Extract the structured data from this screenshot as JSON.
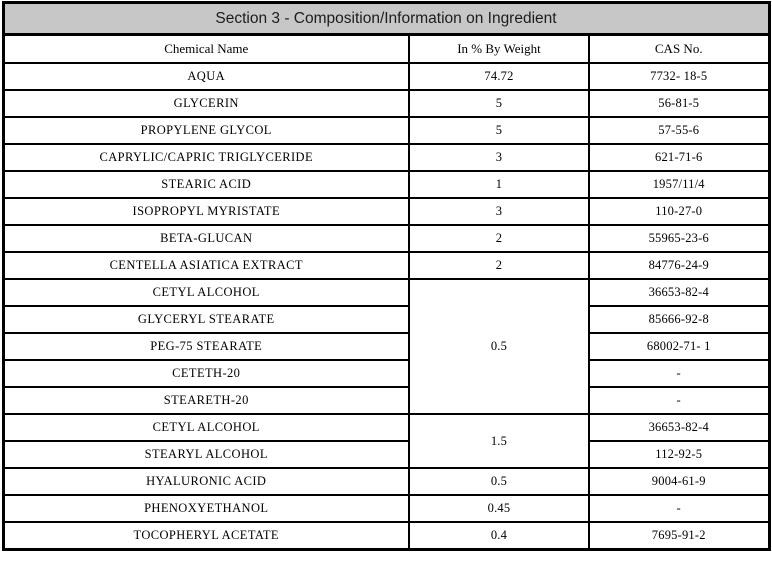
{
  "section": {
    "title": "Section 3 - Composition/Information on Ingredient"
  },
  "table": {
    "headers": [
      "Chemical Name",
      "In % By Weight",
      "CAS No."
    ],
    "rows": [
      {
        "chemical_name": "AQUA",
        "weight": "74.72",
        "weight_rowspan": 1,
        "cas": "7732- 18-5"
      },
      {
        "chemical_name": "GLYCERIN",
        "weight": "5",
        "weight_rowspan": 1,
        "cas": "56-81-5"
      },
      {
        "chemical_name": "PROPYLENE GLYCOL",
        "weight": "5",
        "weight_rowspan": 1,
        "cas": "57-55-6"
      },
      {
        "chemical_name": "CAPRYLIC/CAPRIC TRIGLYCERIDE",
        "weight": "3",
        "weight_rowspan": 1,
        "cas": "621-71-6"
      },
      {
        "chemical_name": "STEARIC ACID",
        "weight": "1",
        "weight_rowspan": 1,
        "cas": "1957/11/4"
      },
      {
        "chemical_name": "ISOPROPYL MYRISTATE",
        "weight": "3",
        "weight_rowspan": 1,
        "cas": "110-27-0"
      },
      {
        "chemical_name": "BETA-GLUCAN",
        "weight": "2",
        "weight_rowspan": 1,
        "cas": "55965-23-6"
      },
      {
        "chemical_name": "CENTELLA ASIATICA EXTRACT",
        "weight": "2",
        "weight_rowspan": 1,
        "cas": "84776-24-9"
      },
      {
        "chemical_name": "CETYL ALCOHOL",
        "weight": "0.5",
        "weight_rowspan": 5,
        "cas": "36653-82-4"
      },
      {
        "chemical_name": "GLYCERYL STEARATE",
        "weight": null,
        "weight_rowspan": 0,
        "cas": "85666-92-8"
      },
      {
        "chemical_name": "PEG-75 STEARATE",
        "weight": null,
        "weight_rowspan": 0,
        "cas": "68002-71- 1"
      },
      {
        "chemical_name": "CETETH-20",
        "weight": null,
        "weight_rowspan": 0,
        "cas": "-"
      },
      {
        "chemical_name": "STEARETH-20",
        "weight": null,
        "weight_rowspan": 0,
        "cas": "-"
      },
      {
        "chemical_name": "CETYL ALCOHOL",
        "weight": "1.5",
        "weight_rowspan": 2,
        "cas": "36653-82-4"
      },
      {
        "chemical_name": "STEARYL ALCOHOL",
        "weight": null,
        "weight_rowspan": 0,
        "cas": "112-92-5"
      },
      {
        "chemical_name": "HYALURONIC ACID",
        "weight": "0.5",
        "weight_rowspan": 1,
        "cas": "9004-61-9"
      },
      {
        "chemical_name": "PHENOXYETHANOL",
        "weight": "0.45",
        "weight_rowspan": 1,
        "cas": "-"
      },
      {
        "chemical_name": "TOCOPHERYL ACETATE",
        "weight": "0.4",
        "weight_rowspan": 1,
        "cas": "7695-91-2"
      }
    ]
  }
}
